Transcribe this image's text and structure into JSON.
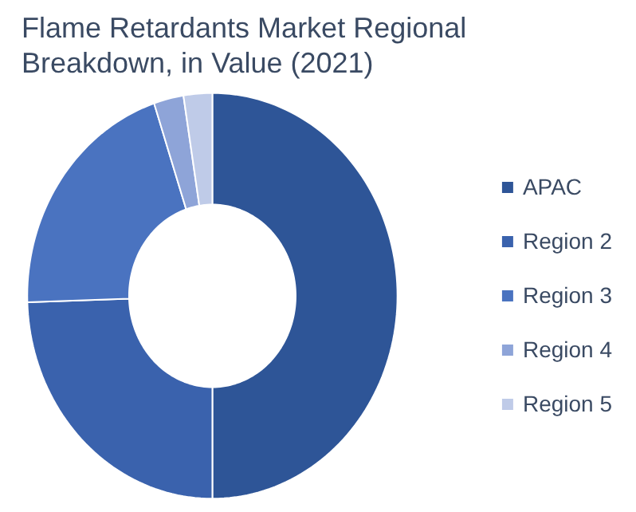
{
  "chart_data": {
    "type": "donut",
    "title": "Flame Retardants Market Regional Breakdown, in Value (2021)",
    "categories": [
      "APAC",
      "Region 2",
      "Region 3",
      "Region 4",
      "Region 5"
    ],
    "values": [
      50,
      24.5,
      20.4,
      2.6,
      2.5
    ],
    "colors": [
      "#2e5597",
      "#3a62ad",
      "#4a73c0",
      "#8ea4d8",
      "#bfcbe8"
    ],
    "legend": "right"
  }
}
